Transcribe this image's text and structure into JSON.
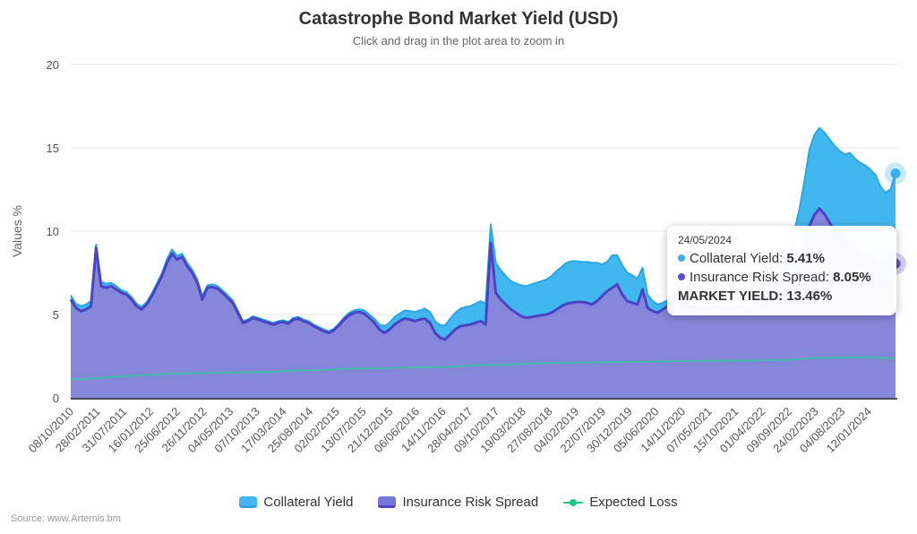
{
  "header": {
    "title": "Catastrophe Bond Market Yield (USD)",
    "subtitle": "Click and drag in the plot area to zoom in"
  },
  "source": "Source: www.Artemis.bm",
  "tooltip": {
    "date": "24/05/2024",
    "rows": [
      {
        "label": "Collateral Yield:",
        "value": "5.41%",
        "color": "#38aef0"
      },
      {
        "label": "Insurance Risk Spread:",
        "value": "8.05%",
        "color": "#584fd2"
      }
    ],
    "footer_label": "MARKET YIELD:",
    "footer_value": "13.46%"
  },
  "legend": [
    {
      "label": "Collateral Yield",
      "fill": "#45b6f2",
      "line": "#2ea3e6",
      "symbol": "area"
    },
    {
      "label": "Insurance Risk Spread",
      "fill": "#7577d8",
      "line": "#4c42c6",
      "symbol": "area"
    },
    {
      "label": "Expected Loss",
      "fill": "#17c786",
      "line": "#17c786",
      "symbol": "line"
    }
  ],
  "chart_data": {
    "type": "area",
    "stacking": "normal",
    "title": "Catastrophe Bond Market Yield (USD)",
    "subtitle": "Click and drag in the plot area to zoom in",
    "xlabel": "",
    "ylabel": "Values %",
    "ylim": [
      0,
      20
    ],
    "y_ticks": [
      0,
      5,
      10,
      15,
      20
    ],
    "grid": true,
    "legend_position": "bottom",
    "x_start": "08/10/2010",
    "x_end": "24/05/2024",
    "x_resolution": "monthly",
    "x_tick_labels": [
      "08/10/2010",
      "28/02/2011",
      "31/07/2011",
      "16/01/2012",
      "25/06/2012",
      "26/11/2012",
      "04/05/2013",
      "07/10/2013",
      "17/03/2014",
      "25/08/2014",
      "02/02/2015",
      "13/07/2015",
      "21/12/2015",
      "06/06/2016",
      "14/11/2016",
      "28/04/2017",
      "09/10/2017",
      "19/03/2018",
      "27/08/2018",
      "04/02/2019",
      "22/07/2019",
      "30/12/2019",
      "05/06/2020",
      "14/11/2020",
      "07/05/2021",
      "15/10/2021",
      "01/04/2022",
      "09/09/2022",
      "24/02/2023",
      "04/08/2023",
      "12/01/2024"
    ],
    "series": [
      {
        "name": "Collateral Yield",
        "role": "stack-top",
        "color": "#28a7e4",
        "fill": "#41b7ef",
        "values": [
          0.25,
          0.25,
          0.3,
          0.3,
          0.3,
          0.2,
          0.25,
          0.25,
          0.2,
          0.2,
          0.15,
          0.15,
          0.15,
          0.15,
          0.15,
          0.15,
          0.15,
          0.15,
          0.15,
          0.2,
          0.25,
          0.2,
          0.2,
          0.2,
          0.2,
          0.2,
          0.2,
          0.15,
          0.15,
          0.15,
          0.15,
          0.15,
          0.15,
          0.15,
          0.1,
          0.1,
          0.1,
          0.1,
          0.1,
          0.1,
          0.1,
          0.1,
          0.1,
          0.1,
          0.1,
          0.1,
          0.1,
          0.1,
          0.1,
          0.1,
          0.1,
          0.1,
          0.1,
          0.1,
          0.1,
          0.15,
          0.15,
          0.15,
          0.2,
          0.2,
          0.25,
          0.3,
          0.4,
          0.4,
          0.45,
          0.45,
          0.5,
          0.5,
          0.55,
          0.55,
          0.6,
          0.65,
          0.7,
          0.75,
          0.85,
          0.95,
          1.0,
          1.05,
          1.1,
          1.1,
          1.15,
          1.2,
          1.25,
          1.1,
          1.8,
          1.75,
          1.7,
          1.7,
          1.75,
          1.85,
          1.9,
          1.95,
          2.0,
          2.05,
          2.1,
          2.2,
          2.3,
          2.35,
          2.45,
          2.5,
          2.45,
          2.4,
          2.45,
          2.5,
          2.3,
          1.9,
          1.75,
          1.95,
          1.75,
          1.75,
          1.7,
          1.65,
          1.55,
          1.3,
          0.8,
          0.6,
          0.5,
          0.4,
          0.35,
          0.3,
          0.3,
          0.25,
          0.25,
          0.2,
          0.2,
          0.15,
          0.15,
          0.15,
          0.1,
          0.1,
          0.1,
          0.1,
          0.1,
          0.15,
          0.2,
          0.3,
          0.4,
          0.6,
          0.9,
          1.2,
          1.6,
          2.0,
          2.5,
          3.1,
          3.7,
          4.2,
          4.6,
          4.8,
          4.85,
          4.9,
          5.0,
          5.1,
          5.2,
          5.3,
          5.4,
          5.45,
          5.5,
          5.45,
          5.4,
          5.4,
          5.4,
          5.4,
          5.4,
          5.41
        ]
      },
      {
        "name": "Insurance Risk Spread",
        "role": "stack-bottom",
        "color": "#4c42c6",
        "fill": "#8487da",
        "values": [
          5.9,
          5.4,
          5.2,
          5.3,
          5.5,
          9.0,
          6.7,
          6.6,
          6.7,
          6.5,
          6.3,
          6.2,
          5.9,
          5.5,
          5.3,
          5.6,
          6.1,
          6.7,
          7.3,
          8.1,
          8.65,
          8.3,
          8.45,
          7.9,
          7.5,
          6.9,
          5.9,
          6.6,
          6.65,
          6.55,
          6.3,
          6.0,
          5.7,
          5.1,
          4.5,
          4.6,
          4.8,
          4.7,
          4.6,
          4.5,
          4.4,
          4.5,
          4.55,
          4.45,
          4.7,
          4.75,
          4.6,
          4.5,
          4.3,
          4.15,
          4.0,
          3.9,
          4.05,
          4.35,
          4.7,
          4.95,
          5.1,
          5.15,
          5.05,
          4.8,
          4.5,
          4.1,
          3.9,
          4.1,
          4.4,
          4.6,
          4.75,
          4.7,
          4.6,
          4.7,
          4.75,
          4.5,
          3.9,
          3.6,
          3.5,
          3.8,
          4.1,
          4.3,
          4.35,
          4.4,
          4.5,
          4.6,
          4.4,
          9.3,
          6.3,
          5.9,
          5.6,
          5.3,
          5.1,
          4.9,
          4.8,
          4.85,
          4.9,
          4.95,
          5.0,
          5.1,
          5.3,
          5.5,
          5.65,
          5.7,
          5.75,
          5.75,
          5.7,
          5.6,
          5.8,
          6.1,
          6.4,
          6.6,
          6.8,
          6.2,
          5.8,
          5.7,
          5.6,
          6.5,
          5.4,
          5.2,
          5.1,
          5.3,
          5.5,
          6.0,
          5.8,
          5.6,
          5.5,
          5.4,
          5.35,
          5.3,
          5.3,
          5.35,
          5.4,
          5.35,
          5.3,
          5.35,
          5.45,
          5.35,
          5.2,
          5.4,
          5.55,
          5.65,
          5.75,
          5.85,
          5.95,
          6.05,
          6.2,
          6.9,
          7.6,
          8.8,
          10.3,
          11.0,
          11.35,
          11.0,
          10.5,
          10.0,
          9.6,
          9.3,
          9.3,
          8.9,
          8.6,
          8.5,
          8.3,
          8.0,
          7.3,
          6.9,
          7.1,
          8.05
        ]
      },
      {
        "name": "Expected Loss",
        "role": "line",
        "color": "#2fc89b",
        "fill": "none",
        "values": [
          1.1,
          1.1,
          1.12,
          1.15,
          1.15,
          1.18,
          1.2,
          1.22,
          1.25,
          1.28,
          1.3,
          1.3,
          1.32,
          1.33,
          1.35,
          1.36,
          1.38,
          1.4,
          1.42,
          1.44,
          1.45,
          1.45,
          1.46,
          1.47,
          1.48,
          1.48,
          1.48,
          1.48,
          1.5,
          1.5,
          1.5,
          1.52,
          1.52,
          1.53,
          1.53,
          1.54,
          1.54,
          1.55,
          1.55,
          1.55,
          1.56,
          1.58,
          1.6,
          1.62,
          1.63,
          1.64,
          1.65,
          1.65,
          1.66,
          1.66,
          1.67,
          1.68,
          1.7,
          1.72,
          1.74,
          1.75,
          1.76,
          1.76,
          1.77,
          1.77,
          1.78,
          1.78,
          1.78,
          1.79,
          1.8,
          1.8,
          1.81,
          1.82,
          1.82,
          1.83,
          1.83,
          1.84,
          1.84,
          1.85,
          1.85,
          1.86,
          1.88,
          1.9,
          1.92,
          1.93,
          1.94,
          1.95,
          1.96,
          1.96,
          1.97,
          1.98,
          1.98,
          2.0,
          2.02,
          2.04,
          2.05,
          2.06,
          2.07,
          2.08,
          2.08,
          2.09,
          2.1,
          2.1,
          2.1,
          2.1,
          2.11,
          2.12,
          2.12,
          2.13,
          2.13,
          2.14,
          2.14,
          2.15,
          2.15,
          2.15,
          2.15,
          2.16,
          2.16,
          2.17,
          2.17,
          2.18,
          2.18,
          2.19,
          2.19,
          2.2,
          2.2,
          2.2,
          2.2,
          2.2,
          2.21,
          2.21,
          2.22,
          2.22,
          2.22,
          2.23,
          2.23,
          2.23,
          2.24,
          2.24,
          2.24,
          2.25,
          2.25,
          2.26,
          2.26,
          2.27,
          2.27,
          2.28,
          2.28,
          2.3,
          2.32,
          2.34,
          2.36,
          2.38,
          2.4,
          2.4,
          2.4,
          2.41,
          2.41,
          2.42,
          2.42,
          2.43,
          2.43,
          2.44,
          2.44,
          2.42,
          2.4,
          2.38,
          2.36,
          2.35
        ]
      }
    ],
    "last_point": {
      "date": "24/05/2024",
      "collateral_yield": 5.41,
      "insurance_risk_spread": 8.05,
      "market_yield": 13.46
    }
  }
}
